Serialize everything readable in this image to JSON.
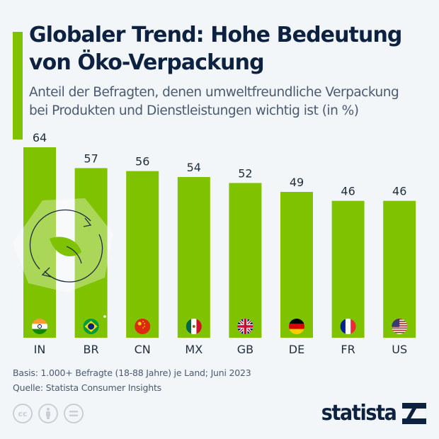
{
  "header": {
    "title_line1": "Globaler Trend: Hohe Bedeutung",
    "title_line2": "von Öko-Verpackung",
    "subtitle_line1": "Anteil der Befragten, denen umweltfreundliche Verpackung",
    "subtitle_line2": "bei Produkten und Dienstleistungen wichtig ist (in %)"
  },
  "colors": {
    "bar": "#7fc200",
    "text_dark": "#0d2240",
    "text_muted": "#4a5a70",
    "background": "#f3f6f9"
  },
  "chart_data": {
    "type": "bar",
    "title": "Globaler Trend: Hohe Bedeutung von Öko-Verpackung",
    "subtitle": "Anteil der Befragten, denen umweltfreundliche Verpackung bei Produkten und Dienstleistungen wichtig ist (in %)",
    "categories": [
      "IN",
      "BR",
      "CN",
      "MX",
      "GB",
      "DE",
      "FR",
      "US"
    ],
    "values": [
      64,
      57,
      56,
      54,
      52,
      49,
      46,
      46
    ],
    "flags": [
      "india-flag",
      "brazil-flag",
      "china-flag",
      "mexico-flag",
      "uk-flag",
      "germany-flag",
      "france-flag",
      "usa-flag"
    ],
    "xlabel": "",
    "ylabel": "in %",
    "ylim": [
      0,
      64
    ],
    "grid": false,
    "legend": "none",
    "decoration": "recycle-leaf-icon"
  },
  "footer": {
    "basis": "Basis: 1.000+ Befragte (18-88 Jahre) je Land; Juni 2023",
    "source": "Quelle: Statista Consumer Insights",
    "cc_labels": [
      "cc",
      "by",
      "="
    ],
    "brand": "statista"
  }
}
